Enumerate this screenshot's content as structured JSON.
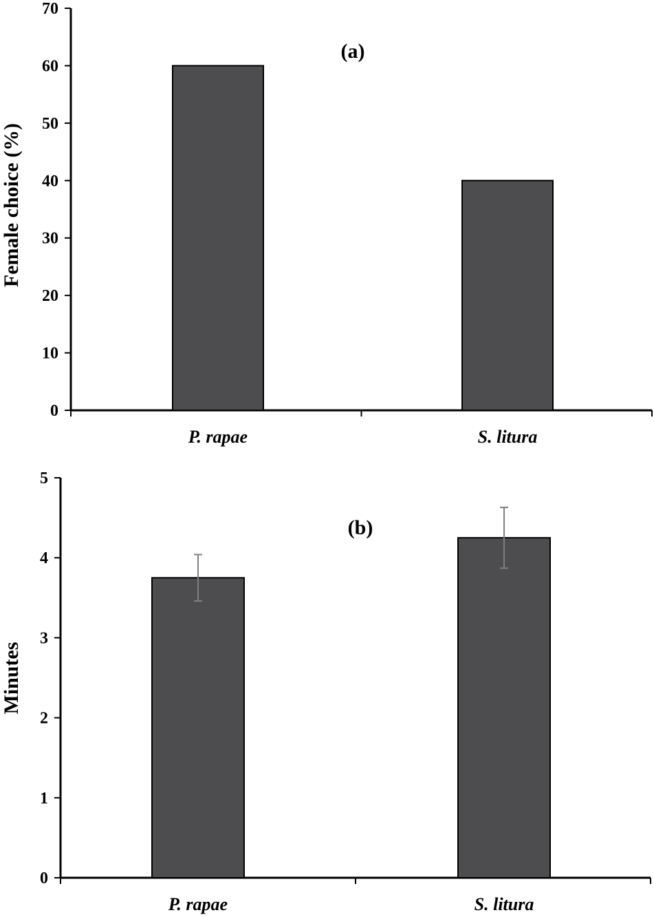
{
  "chart_data": [
    {
      "type": "bar",
      "panel_label": "(a)",
      "categories": [
        "P. rapae",
        "S. litura"
      ],
      "values": [
        60,
        40
      ],
      "ylabel": "Female choice (%)",
      "xlabel": "",
      "ylim": [
        0,
        70
      ],
      "yticks": [
        "0",
        "10",
        "20",
        "30",
        "40",
        "50",
        "60",
        "70"
      ],
      "error_bars": null,
      "grid": false,
      "colors": {
        "bar": "#4d4d4f",
        "bar_edge": "#000000",
        "axis": "#000000"
      }
    },
    {
      "type": "bar",
      "panel_label": "(b)",
      "categories": [
        "P. rapae",
        "S. litura"
      ],
      "values": [
        3.75,
        4.25
      ],
      "ylabel": "Minutes",
      "xlabel": "",
      "ylim": [
        0,
        5
      ],
      "yticks": [
        "0",
        "1",
        "2",
        "3",
        "4",
        "5"
      ],
      "error_bars": [
        0.29,
        0.38
      ],
      "grid": false,
      "colors": {
        "bar": "#4d4d4f",
        "bar_edge": "#000000",
        "axis": "#000000",
        "error": "#7f7f7f"
      }
    }
  ]
}
